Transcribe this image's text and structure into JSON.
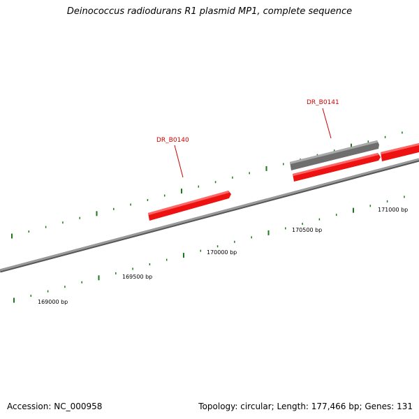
{
  "title": "Deinococcus radiodurans R1 plasmid MP1, complete sequence",
  "footer": {
    "accession": "Accession: NC_000958",
    "summary": "Topology: circular; Length: 177,466 bp; Genes: 131"
  },
  "colors": {
    "backbone": "#8c8c8c",
    "gene_forward": "#ee1111",
    "gene_gray": "#6e6e6e",
    "tick": "#1a7a1a",
    "gene_label": "#cc0000"
  },
  "scale": {
    "labels": [
      "169000 bp",
      "169500 bp",
      "170000 bp",
      "170500 bp",
      "171000 bp"
    ]
  },
  "genes": [
    {
      "name": "DR_B0140",
      "color": "red"
    },
    {
      "name": "DR_B0141",
      "color": "red"
    },
    {
      "name": "",
      "color": "gray"
    },
    {
      "name": "",
      "color": "red"
    }
  ]
}
